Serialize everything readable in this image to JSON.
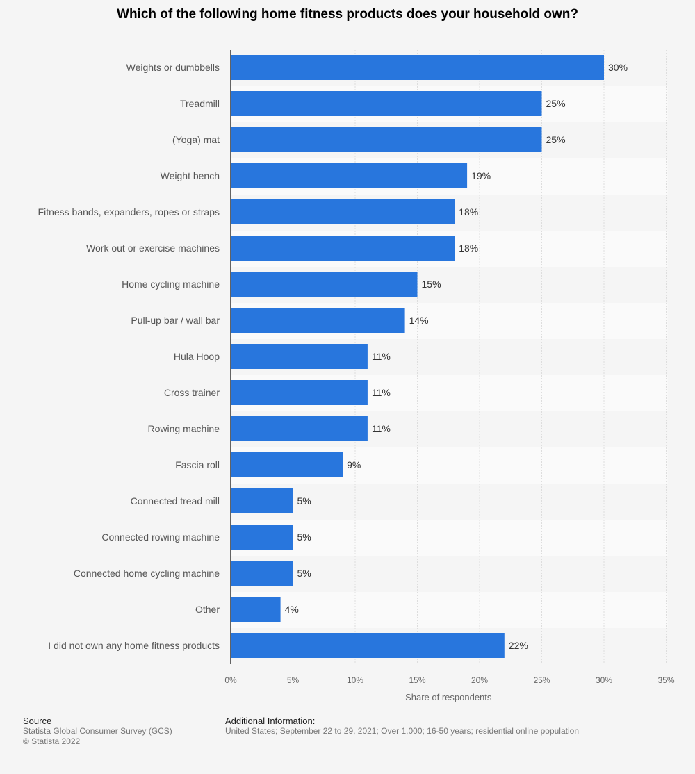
{
  "chart_data": {
    "type": "bar",
    "orientation": "horizontal",
    "title": "Which of the following home fitness products does your household own?",
    "xlabel": "Share of respondents",
    "ylabel": "",
    "xlim": [
      0,
      35
    ],
    "ticks": [
      "0%",
      "5%",
      "10%",
      "15%",
      "20%",
      "25%",
      "30%",
      "35%"
    ],
    "tick_values": [
      0,
      5,
      10,
      15,
      20,
      25,
      30,
      35
    ],
    "grid": true,
    "categories": [
      "Weights or dumbbells",
      "Treadmill",
      "(Yoga) mat",
      "Weight bench",
      "Fitness bands, expanders, ropes or straps",
      "Work out or exercise machines",
      "Home cycling machine",
      "Pull-up bar / wall bar",
      "Hula Hoop",
      "Cross trainer",
      "Rowing machine",
      "Fascia roll",
      "Connected tread mill",
      "Connected rowing machine",
      "Connected home cycling machine",
      "Other",
      "I did not own any home fitness products"
    ],
    "values": [
      30,
      25,
      25,
      19,
      18,
      18,
      15,
      14,
      11,
      11,
      11,
      9,
      5,
      5,
      5,
      4,
      22
    ],
    "value_labels": [
      "30%",
      "25%",
      "25%",
      "19%",
      "18%",
      "18%",
      "15%",
      "14%",
      "11%",
      "11%",
      "11%",
      "9%",
      "5%",
      "5%",
      "5%",
      "4%",
      "22%"
    ],
    "colors": {
      "bar": "#2876dd",
      "background": "#f5f5f5",
      "band": "#fafafa",
      "grid": "#dddddd",
      "axis": "#333333"
    }
  },
  "footer": {
    "source_heading": "Source",
    "source_lines": [
      "Statista Global Consumer Survey (GCS)",
      "© Statista 2022"
    ],
    "info_heading": "Additional Information:",
    "info_lines": [
      "United States; September 22 to 29, 2021; Over 1,000; 16-50 years; residential online population"
    ]
  }
}
